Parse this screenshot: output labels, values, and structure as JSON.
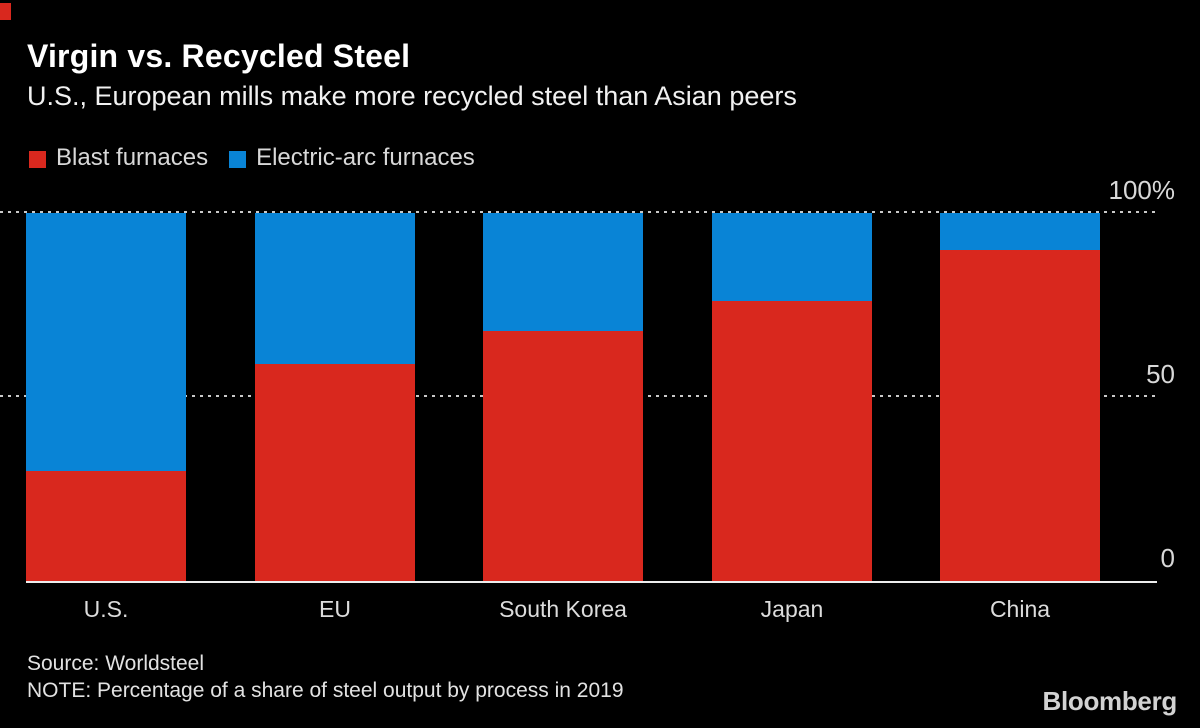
{
  "brand": {
    "mark_color": "#d9281e"
  },
  "header": {
    "title": "Virgin vs. Recycled Steel",
    "subtitle": "U.S., European mills make more recycled steel than Asian peers"
  },
  "legend": [
    {
      "label": "Blast furnaces",
      "color": "#d9281e"
    },
    {
      "label": "Electric-arc furnaces",
      "color": "#0984d6"
    }
  ],
  "chart_data": {
    "type": "bar",
    "stacked": true,
    "percent_stacked": true,
    "categories": [
      "U.S.",
      "EU",
      "South Korea",
      "Japan",
      "China"
    ],
    "series": [
      {
        "name": "Blast furnaces",
        "color": "#d9281e",
        "values": [
          30,
          59,
          68,
          76,
          90
        ]
      },
      {
        "name": "Electric-arc furnaces",
        "color": "#0984d6",
        "values": [
          70,
          41,
          32,
          24,
          10
        ]
      }
    ],
    "unit": "%",
    "ylim": [
      0,
      100
    ],
    "yticks": [
      {
        "value": 0,
        "label": "0"
      },
      {
        "value": 50,
        "label": "50"
      },
      {
        "value": 100,
        "label": "100%"
      }
    ],
    "grid": "horizontal-dashed",
    "legend_position": "top-left",
    "note": "Percentage share of steel output by process in 2019"
  },
  "footer": {
    "source": "Source: Worldsteel",
    "note": "NOTE: Percentage of a share of steel output by process in 2019",
    "logo": "Bloomberg"
  }
}
